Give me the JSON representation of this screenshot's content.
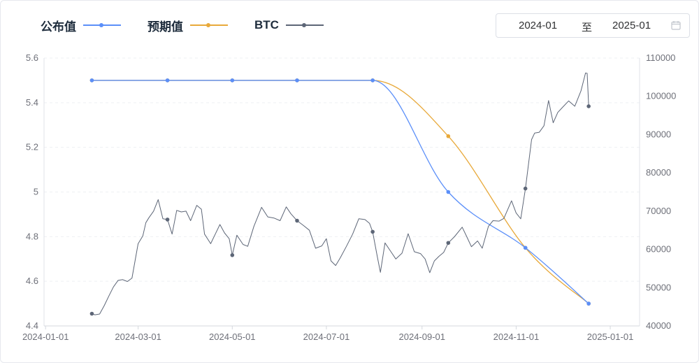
{
  "legend": {
    "items": [
      {
        "label": "公布值",
        "color": "#5b8ff9"
      },
      {
        "label": "预期值",
        "color": "#e8a93a"
      },
      {
        "label": "BTC",
        "color": "#5d6677"
      }
    ]
  },
  "date_range": {
    "start": "2024-01",
    "separator": "至",
    "end": "2025-01",
    "icon": "calendar-icon"
  },
  "chart_data": {
    "type": "line",
    "x_axis": {
      "type": "date",
      "ticks": [
        "2024-01-01",
        "2024-03-01",
        "2024-05-01",
        "2024-07-01",
        "2024-09-01",
        "2024-11-01",
        "2025-01-01"
      ],
      "range": [
        "2023-12-31",
        "2025-01-20"
      ]
    },
    "y_left": {
      "ticks": [
        "4.4",
        "4.6",
        "4.8",
        "5",
        "5.2",
        "5.4",
        "5.6"
      ],
      "min": 4.4,
      "max": 5.6
    },
    "y_right": {
      "ticks": [
        "40000",
        "50000",
        "60000",
        "70000",
        "80000",
        "90000",
        "100000",
        "110000"
      ],
      "min": 40000,
      "max": 110000
    },
    "grid": true,
    "legend_position": "top-left",
    "series": [
      {
        "name": "公布值",
        "axis": "left",
        "color": "#5b8ff9",
        "smooth": true,
        "points": [
          {
            "x": "2024-01-31",
            "y": 5.5
          },
          {
            "x": "2024-03-20",
            "y": 5.5
          },
          {
            "x": "2024-05-01",
            "y": 5.5
          },
          {
            "x": "2024-06-12",
            "y": 5.5
          },
          {
            "x": "2024-07-31",
            "y": 5.5
          },
          {
            "x": "2024-09-18",
            "y": 5.0
          },
          {
            "x": "2024-11-07",
            "y": 4.75
          },
          {
            "x": "2024-12-18",
            "y": 4.5
          }
        ]
      },
      {
        "name": "预期值",
        "axis": "left",
        "color": "#e8a93a",
        "smooth": true,
        "points": [
          {
            "x": "2024-01-31",
            "y": 5.5
          },
          {
            "x": "2024-03-20",
            "y": 5.5
          },
          {
            "x": "2024-05-01",
            "y": 5.5
          },
          {
            "x": "2024-06-12",
            "y": 5.5
          },
          {
            "x": "2024-07-31",
            "y": 5.5
          },
          {
            "x": "2024-09-18",
            "y": 5.25
          },
          {
            "x": "2024-11-07",
            "y": 4.75
          },
          {
            "x": "2024-12-18",
            "y": 4.5
          }
        ]
      },
      {
        "name": "BTC",
        "axis": "right",
        "color": "#5d6677",
        "markers": [
          "2024-01-31",
          "2024-03-20",
          "2024-05-01",
          "2024-06-12",
          "2024-07-31",
          "2024-09-18",
          "2024-11-07",
          "2024-12-18"
        ],
        "points": [
          [
            "2024-01-31",
            43200
          ],
          [
            "2024-02-02",
            42900
          ],
          [
            "2024-02-05",
            43100
          ],
          [
            "2024-02-08",
            45300
          ],
          [
            "2024-02-11",
            47800
          ],
          [
            "2024-02-14",
            50200
          ],
          [
            "2024-02-17",
            51900
          ],
          [
            "2024-02-20",
            52100
          ],
          [
            "2024-02-23",
            51600
          ],
          [
            "2024-02-26",
            52500
          ],
          [
            "2024-02-28",
            57000
          ],
          [
            "2024-03-01",
            61500
          ],
          [
            "2024-03-04",
            63500
          ],
          [
            "2024-03-06",
            67000
          ],
          [
            "2024-03-08",
            68300
          ],
          [
            "2024-03-11",
            70000
          ],
          [
            "2024-03-14",
            73000
          ],
          [
            "2024-03-17",
            68000
          ],
          [
            "2024-03-20",
            67800
          ],
          [
            "2024-03-23",
            64000
          ],
          [
            "2024-03-26",
            70200
          ],
          [
            "2024-03-29",
            69800
          ],
          [
            "2024-04-01",
            70000
          ],
          [
            "2024-04-04",
            67500
          ],
          [
            "2024-04-08",
            71500
          ],
          [
            "2024-04-11",
            70500
          ],
          [
            "2024-04-13",
            64000
          ],
          [
            "2024-04-17",
            61500
          ],
          [
            "2024-04-20",
            64000
          ],
          [
            "2024-04-23",
            66500
          ],
          [
            "2024-04-26",
            64300
          ],
          [
            "2024-04-29",
            62800
          ],
          [
            "2024-05-01",
            58500
          ],
          [
            "2024-05-04",
            63700
          ],
          [
            "2024-05-08",
            61300
          ],
          [
            "2024-05-11",
            60800
          ],
          [
            "2024-05-15",
            66000
          ],
          [
            "2024-05-20",
            71000
          ],
          [
            "2024-05-24",
            68500
          ],
          [
            "2024-05-28",
            68200
          ],
          [
            "2024-06-01",
            67500
          ],
          [
            "2024-06-05",
            71100
          ],
          [
            "2024-06-08",
            69300
          ],
          [
            "2024-06-12",
            67500
          ],
          [
            "2024-06-16",
            66300
          ],
          [
            "2024-06-20",
            65000
          ],
          [
            "2024-06-24",
            60300
          ],
          [
            "2024-06-28",
            60900
          ],
          [
            "2024-07-01",
            62800
          ],
          [
            "2024-07-04",
            57000
          ],
          [
            "2024-07-07",
            55800
          ],
          [
            "2024-07-10",
            57800
          ],
          [
            "2024-07-14",
            60800
          ],
          [
            "2024-07-18",
            64000
          ],
          [
            "2024-07-22",
            68000
          ],
          [
            "2024-07-26",
            67800
          ],
          [
            "2024-07-29",
            66800
          ],
          [
            "2024-07-31",
            64600
          ],
          [
            "2024-08-03",
            58100
          ],
          [
            "2024-08-05",
            54000
          ],
          [
            "2024-08-08",
            61700
          ],
          [
            "2024-08-12",
            59300
          ],
          [
            "2024-08-15",
            57500
          ],
          [
            "2024-08-19",
            59000
          ],
          [
            "2024-08-23",
            64100
          ],
          [
            "2024-08-27",
            59400
          ],
          [
            "2024-08-31",
            58900
          ],
          [
            "2024-09-03",
            57500
          ],
          [
            "2024-09-06",
            53900
          ],
          [
            "2024-09-09",
            57000
          ],
          [
            "2024-09-12",
            58200
          ],
          [
            "2024-09-15",
            59200
          ],
          [
            "2024-09-18",
            61700
          ],
          [
            "2024-09-22",
            63300
          ],
          [
            "2024-09-27",
            65800
          ],
          [
            "2024-09-30",
            63300
          ],
          [
            "2024-10-03",
            60700
          ],
          [
            "2024-10-07",
            62200
          ],
          [
            "2024-10-10",
            60300
          ],
          [
            "2024-10-14",
            66000
          ],
          [
            "2024-10-17",
            67500
          ],
          [
            "2024-10-21",
            67400
          ],
          [
            "2024-10-24",
            68100
          ],
          [
            "2024-10-29",
            72700
          ],
          [
            "2024-11-01",
            69500
          ],
          [
            "2024-11-04",
            68000
          ],
          [
            "2024-11-07",
            75900
          ],
          [
            "2024-11-11",
            88700
          ],
          [
            "2024-11-13",
            90400
          ],
          [
            "2024-11-16",
            90600
          ],
          [
            "2024-11-19",
            92300
          ],
          [
            "2024-11-22",
            98900
          ],
          [
            "2024-11-25",
            93100
          ],
          [
            "2024-11-28",
            95800
          ],
          [
            "2024-12-01",
            97100
          ],
          [
            "2024-12-05",
            98800
          ],
          [
            "2024-12-09",
            97400
          ],
          [
            "2024-12-13",
            101400
          ],
          [
            "2024-12-16",
            106100
          ],
          [
            "2024-12-17",
            106000
          ],
          [
            "2024-12-18",
            97400
          ]
        ]
      }
    ]
  }
}
